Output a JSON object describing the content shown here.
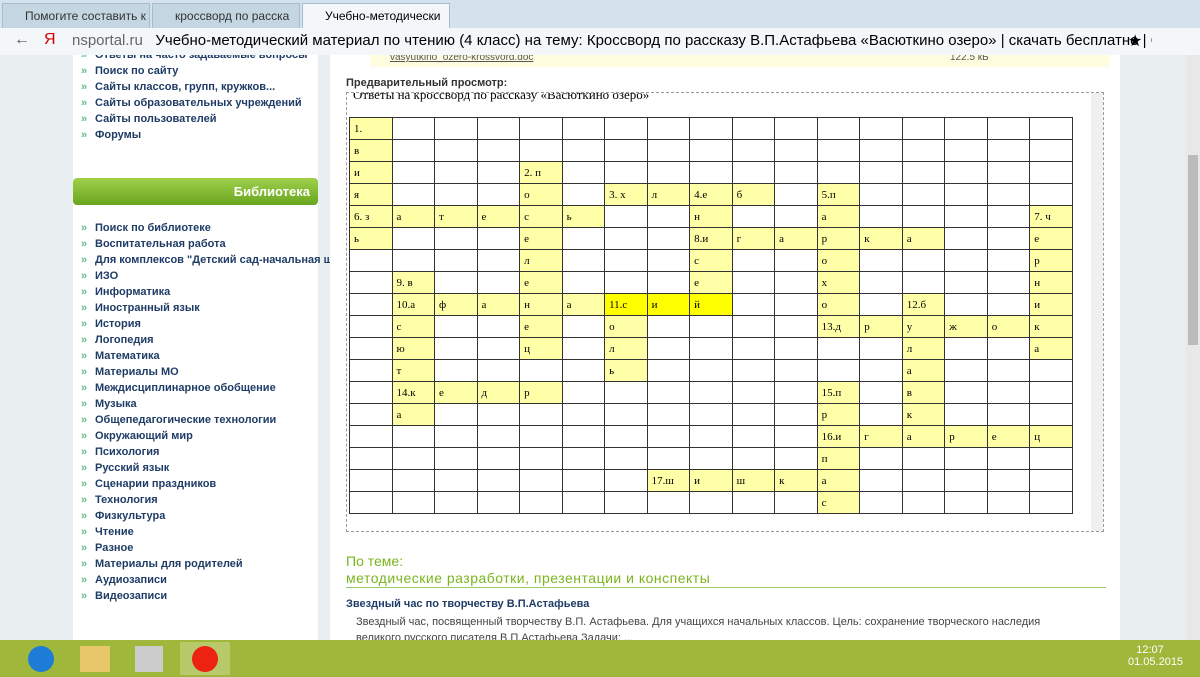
{
  "browser": {
    "tabs": [
      "Помогите составить к",
      "кроссворд по расска",
      "Учебно-методически"
    ],
    "domain": "nsportal.ru",
    "page_title": "Учебно-методический материал по чтению (4 класс) на тему: Кроссворд по рассказу В.П.Астафьева «Васюткино озеро» | скачать бесплатно | Социа..."
  },
  "sidebar": {
    "top_links": [
      "Ответы на часто задаваемые вопросы",
      "Поиск по сайту",
      "Сайты классов, групп, кружков...",
      "Сайты образовательных учреждений",
      "Сайты пользователей",
      "Форумы"
    ],
    "library_title": "Библиотека",
    "library_links": [
      "Поиск по библиотеке",
      "Воспитательная работа",
      "Для комплексов \"Детский сад-начальная школа\"",
      "ИЗО",
      "Информатика",
      "Иностранный язык",
      "История",
      "Логопедия",
      "Математика",
      "Материалы МО",
      "Междисциплинарное обобщение",
      "Музыка",
      "Общепедагогические технологии",
      "Окружающий мир",
      "Психология",
      "Русский язык",
      "Сценарии праздников",
      "Технология",
      "Физкультура",
      "Чтение",
      "Разное",
      "Материалы для родителей",
      "Аудиозаписи",
      "Видеозаписи"
    ]
  },
  "main": {
    "file_name": "vasyutkino_ozero-krossvord.doc",
    "file_size": "122.5 кБ",
    "preview_label": "Предварительный просмотр:",
    "doc_title": "Ответы на кроссворд по рассказу «Васюткино озеро»"
  },
  "crossword": {
    "rows": [
      [
        "1.",
        null,
        null,
        null,
        null,
        null,
        null,
        null,
        null,
        null,
        null,
        null,
        null,
        null,
        null,
        null,
        null
      ],
      [
        "в",
        null,
        null,
        null,
        null,
        null,
        null,
        null,
        null,
        null,
        null,
        null,
        null,
        null,
        null,
        null,
        null
      ],
      [
        "и",
        null,
        null,
        null,
        "2. п",
        null,
        null,
        null,
        null,
        null,
        null,
        null,
        null,
        null,
        null,
        null,
        null
      ],
      [
        "я",
        null,
        null,
        null,
        "о",
        null,
        "3. х",
        "л",
        "4.е",
        "б",
        null,
        "5.п",
        null,
        null,
        null,
        null,
        null
      ],
      [
        "6. з",
        "а",
        "т",
        "е",
        "с",
        "ь",
        null,
        null,
        "н",
        null,
        null,
        "а",
        null,
        null,
        null,
        null,
        "7. ч"
      ],
      [
        "ь",
        null,
        null,
        null,
        "е",
        null,
        null,
        null,
        "8.и",
        "г",
        "а",
        "р",
        "к",
        "а",
        null,
        null,
        "е"
      ],
      [
        null,
        null,
        null,
        null,
        "л",
        null,
        null,
        null,
        "с",
        null,
        null,
        "о",
        null,
        null,
        null,
        null,
        "р"
      ],
      [
        null,
        "9. в",
        null,
        null,
        "е",
        null,
        null,
        null,
        "е",
        null,
        null,
        "х",
        null,
        null,
        null,
        null,
        "н"
      ],
      [
        null,
        "10.а",
        "ф",
        "а",
        "н",
        "а",
        "11.с",
        "и",
        "й",
        null,
        null,
        "о",
        null,
        "12.б",
        null,
        null,
        "и"
      ],
      [
        null,
        "с",
        null,
        null,
        "е",
        null,
        "о",
        null,
        null,
        null,
        null,
        "13.д",
        "р",
        "у",
        "ж",
        "о",
        "к"
      ],
      [
        null,
        "ю",
        null,
        null,
        "ц",
        null,
        "л",
        null,
        null,
        null,
        null,
        null,
        null,
        "л",
        null,
        null,
        "а"
      ],
      [
        null,
        "т",
        null,
        null,
        null,
        null,
        "ь",
        null,
        null,
        null,
        null,
        null,
        null,
        "а",
        null,
        null,
        null
      ],
      [
        null,
        "14.к",
        "е",
        "д",
        "р",
        null,
        null,
        null,
        null,
        null,
        null,
        "15.п",
        null,
        "в",
        null,
        null,
        null
      ],
      [
        null,
        "а",
        null,
        null,
        null,
        null,
        null,
        null,
        null,
        null,
        null,
        "р",
        null,
        "к",
        null,
        null,
        null
      ],
      [
        null,
        null,
        null,
        null,
        null,
        null,
        null,
        null,
        null,
        null,
        null,
        "16.и",
        "г",
        "а",
        "р",
        "е",
        "ц"
      ],
      [
        null,
        null,
        null,
        null,
        null,
        null,
        null,
        null,
        null,
        null,
        null,
        "п",
        null,
        null,
        null,
        null,
        null
      ],
      [
        null,
        null,
        null,
        null,
        null,
        null,
        null,
        "17.ш",
        "и",
        "ш",
        "к",
        "а",
        null,
        null,
        null,
        null,
        null
      ],
      [
        null,
        null,
        null,
        null,
        null,
        null,
        null,
        null,
        null,
        null,
        null,
        "с",
        null,
        null,
        null,
        null,
        null
      ]
    ],
    "highlighted_cells": [
      [
        8,
        6
      ],
      [
        8,
        7
      ],
      [
        8,
        8
      ]
    ]
  },
  "related": {
    "heading": "По теме:",
    "subheading": "методические разработки, презентации и конспекты",
    "item_title": "Звездный час по творчеству В.П.Астафьева",
    "item_text": "Звездный час, посвященный творчеству В.П. Астафьева. Для учащихся  начальных классов. Цель: сохранение творческого наследия великого русского писателя В.П.Астафьева Задачи: ..."
  },
  "taskbar": {
    "time": "12:07",
    "date": "01.05.2015"
  }
}
